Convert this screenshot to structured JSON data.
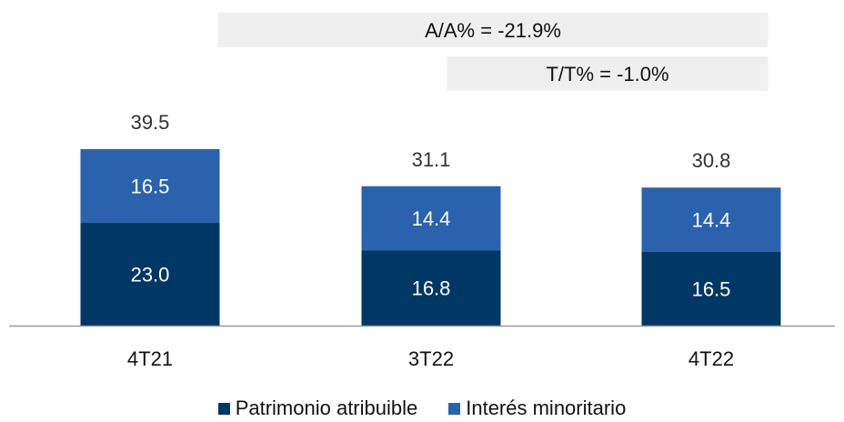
{
  "chart_data": {
    "type": "bar",
    "stacked": true,
    "categories": [
      "4T21",
      "3T22",
      "4T22"
    ],
    "series": [
      {
        "name": "Patrimonio atribuible",
        "values": [
          23.0,
          16.8,
          16.5
        ],
        "color": "#003865"
      },
      {
        "name": "Interés minoritario",
        "values": [
          16.5,
          14.4,
          14.4
        ],
        "color": "#2a62ae"
      }
    ],
    "totals": [
      39.5,
      31.1,
      30.8
    ],
    "value_labels": {
      "segments": [
        [
          "23.0",
          "16.5"
        ],
        [
          "16.8",
          "14.4"
        ],
        [
          "16.5",
          "14.4"
        ]
      ],
      "totals": [
        "39.5",
        "31.1",
        "30.8"
      ]
    },
    "annotations": [
      {
        "text": "A/A% = -21.9%",
        "from": "4T21",
        "to": "4T22"
      },
      {
        "text": "T/T%  = -1.0%",
        "from": "3T22",
        "to": "4T22"
      }
    ],
    "legend_position": "bottom",
    "grid": false,
    "ylim": [
      0,
      45
    ],
    "colors": {
      "annotation_bg": "#efefef",
      "axis": "#999999",
      "label_dark": "#ffffff"
    }
  }
}
